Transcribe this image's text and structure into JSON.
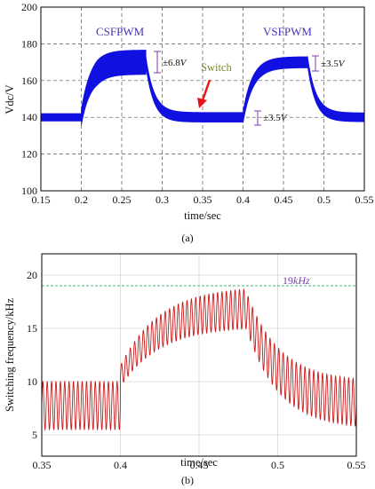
{
  "chart_data": [
    {
      "type": "line",
      "panel_label": "(a)",
      "xlabel": "time/sec",
      "ylabel": "Vdc/V",
      "xlim": [
        0.15,
        0.55
      ],
      "ylim": [
        100,
        200
      ],
      "xticks": [
        "0.15",
        "0.2",
        "0.25",
        "0.3",
        "0.35",
        "0.4",
        "0.45",
        "0.5",
        "0.55"
      ],
      "yticks": [
        "100",
        "120",
        "140",
        "160",
        "180",
        "200"
      ],
      "grid": "dashed",
      "line_color": "#1010e0",
      "series": [
        {
          "segments": [
            {
              "x_start": 0.15,
              "x_end": 0.2,
              "center": 140,
              "ripple": 2.5
            },
            {
              "x_start": 0.2,
              "x_end": 0.28,
              "center_start": 140,
              "center_end": 170,
              "ripple": 6.8
            },
            {
              "x_start": 0.28,
              "x_end": 0.4,
              "center_start": 170,
              "center_end": 140,
              "ripple": 3.5
            },
            {
              "x_start": 0.4,
              "x_end": 0.48,
              "center_start": 140,
              "center_end": 170,
              "ripple": 3.5
            },
            {
              "x_start": 0.48,
              "x_end": 0.55,
              "center_start": 170,
              "center_end": 140,
              "ripple": 3.0
            }
          ]
        }
      ],
      "annotations": {
        "mode_left": "CSFPWM",
        "mode_right": "VSFPWM",
        "switch_label": "Switch",
        "ripple_1": "±6.8",
        "ripple_1_unit": "V",
        "ripple_2": "±3.5",
        "ripple_2_unit": "V",
        "ripple_3": "±3.5",
        "ripple_3_unit": "V",
        "arrow_color": "#e8141a"
      }
    },
    {
      "type": "line",
      "panel_label": "(b)",
      "xlabel": "time/sec",
      "ylabel": "Switching frequency/kHz",
      "xlim": [
        0.35,
        0.55
      ],
      "ylim": [
        3,
        22
      ],
      "xticks": [
        "0.35",
        "0.4",
        "0.45",
        "0.5",
        "0.55"
      ],
      "yticks": [
        "5",
        "10",
        "15",
        "20"
      ],
      "grid": "solid-light",
      "line_color": "#cc1a1a",
      "reference_line": {
        "y": 19,
        "color": "#3cb371",
        "label_value": "19",
        "label_unit": "kHz"
      },
      "series": [
        {
          "segments": [
            {
              "x_start": 0.35,
              "x_end": 0.4,
              "min": 5.5,
              "max": 10
            },
            {
              "x_start": 0.4,
              "x_end": 0.48,
              "min_start": 9,
              "min_end": 15,
              "max_start": 12,
              "max_end": 19
            },
            {
              "x_start": 0.48,
              "x_end": 0.55,
              "min_start": 15,
              "min_end": 5.5,
              "max_start": 18,
              "max_end": 10
            }
          ]
        }
      ]
    }
  ]
}
